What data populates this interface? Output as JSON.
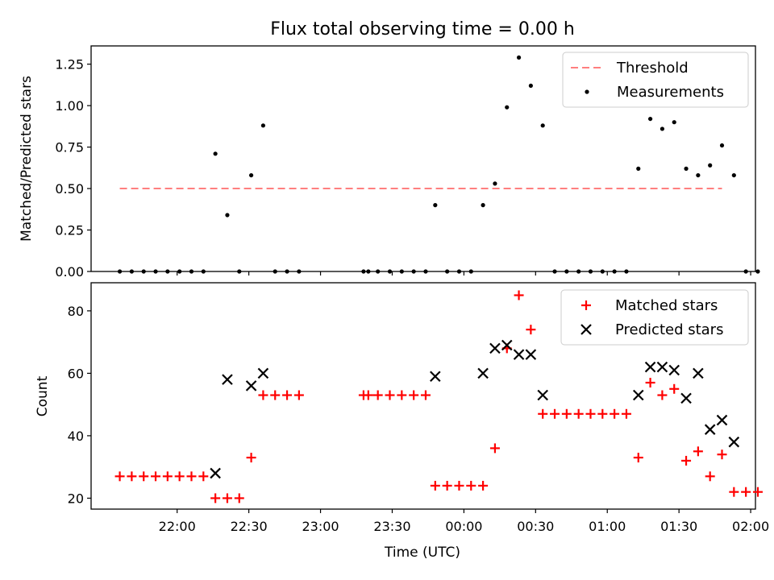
{
  "figure": {
    "title": "Flux total observing time = 0.00 h",
    "xlabel": "Time (UTC)",
    "x_tick_labels": [
      "22:00",
      "22:30",
      "23:00",
      "23:30",
      "00:00",
      "00:30",
      "01:00",
      "01:30",
      "02:00"
    ]
  },
  "chart_data": [
    {
      "type": "scatter",
      "panel": "top",
      "ylabel": "Matched/Predicted stars",
      "ylim": [
        0,
        1.36
      ],
      "y_ticks": [
        0.0,
        0.25,
        0.5,
        0.75,
        1.0,
        1.25
      ],
      "y_tick_labels": [
        "0.00",
        "0.25",
        "0.50",
        "0.75",
        "1.00",
        "1.25"
      ],
      "x_unit": "minutes after 21:00 UTC",
      "xlim": [
        24,
        302
      ],
      "legend": "upper right",
      "threshold": {
        "name": "Threshold",
        "value": 0.5,
        "x_range": [
          36,
          288
        ],
        "color": "#ff7f7f"
      },
      "series": [
        {
          "name": "Measurements",
          "color": "#000000",
          "points": [
            [
              36,
              0
            ],
            [
              41,
              0
            ],
            [
              46,
              0
            ],
            [
              51,
              0
            ],
            [
              56,
              0
            ],
            [
              61,
              0
            ],
            [
              66,
              0
            ],
            [
              71,
              0
            ],
            [
              76,
              0.71
            ],
            [
              81,
              0.34
            ],
            [
              86,
              0
            ],
            [
              91,
              0.58
            ],
            [
              96,
              0.88
            ],
            [
              101,
              0
            ],
            [
              106,
              0
            ],
            [
              111,
              0
            ],
            [
              138,
              0
            ],
            [
              140,
              0
            ],
            [
              144,
              0
            ],
            [
              149,
              0
            ],
            [
              154,
              0
            ],
            [
              159,
              0
            ],
            [
              164,
              0
            ],
            [
              168,
              0.4
            ],
            [
              173,
              0
            ],
            [
              178,
              0
            ],
            [
              183,
              0
            ],
            [
              188,
              0.4
            ],
            [
              193,
              0.53
            ],
            [
              198,
              0.99
            ],
            [
              203,
              1.29
            ],
            [
              208,
              1.12
            ],
            [
              213,
              0.88
            ],
            [
              218,
              0
            ],
            [
              223,
              0
            ],
            [
              228,
              0
            ],
            [
              233,
              0
            ],
            [
              238,
              0
            ],
            [
              243,
              0
            ],
            [
              248,
              0
            ],
            [
              253,
              0.62
            ],
            [
              258,
              0.92
            ],
            [
              263,
              0.86
            ],
            [
              268,
              0.9
            ],
            [
              273,
              0.62
            ],
            [
              278,
              0.58
            ],
            [
              283,
              0.64
            ],
            [
              288,
              0.76
            ],
            [
              293,
              0.58
            ],
            [
              298,
              0
            ],
            [
              303,
              0
            ]
          ]
        }
      ]
    },
    {
      "type": "scatter",
      "panel": "bottom",
      "ylabel": "Count",
      "ylim": [
        16.5,
        89
      ],
      "y_ticks": [
        20,
        40,
        60,
        80
      ],
      "y_tick_labels": [
        "20",
        "40",
        "60",
        "80"
      ],
      "x_unit": "minutes after 21:00 UTC",
      "xlim": [
        24,
        302
      ],
      "legend": "upper right",
      "series": [
        {
          "name": "Matched stars",
          "marker": "plus",
          "color": "#ff0000",
          "points": [
            [
              36,
              27
            ],
            [
              41,
              27
            ],
            [
              46,
              27
            ],
            [
              51,
              27
            ],
            [
              56,
              27
            ],
            [
              61,
              27
            ],
            [
              66,
              27
            ],
            [
              71,
              27
            ],
            [
              76,
              20
            ],
            [
              81,
              20
            ],
            [
              86,
              20
            ],
            [
              91,
              33
            ],
            [
              96,
              53
            ],
            [
              101,
              53
            ],
            [
              106,
              53
            ],
            [
              111,
              53
            ],
            [
              138,
              53
            ],
            [
              140,
              53
            ],
            [
              144,
              53
            ],
            [
              149,
              53
            ],
            [
              154,
              53
            ],
            [
              159,
              53
            ],
            [
              164,
              53
            ],
            [
              168,
              24
            ],
            [
              173,
              24
            ],
            [
              178,
              24
            ],
            [
              183,
              24
            ],
            [
              188,
              24
            ],
            [
              193,
              36
            ],
            [
              198,
              68
            ],
            [
              203,
              85
            ],
            [
              208,
              74
            ],
            [
              213,
              47
            ],
            [
              218,
              47
            ],
            [
              223,
              47
            ],
            [
              228,
              47
            ],
            [
              233,
              47
            ],
            [
              238,
              47
            ],
            [
              243,
              47
            ],
            [
              248,
              47
            ],
            [
              253,
              33
            ],
            [
              258,
              57
            ],
            [
              263,
              53
            ],
            [
              268,
              55
            ],
            [
              273,
              32
            ],
            [
              278,
              35
            ],
            [
              283,
              27
            ],
            [
              288,
              34
            ],
            [
              293,
              22
            ],
            [
              298,
              22
            ],
            [
              303,
              22
            ]
          ]
        },
        {
          "name": "Predicted stars",
          "marker": "x",
          "color": "#000000",
          "points": [
            [
              76,
              28
            ],
            [
              81,
              58
            ],
            [
              91,
              56
            ],
            [
              96,
              60
            ],
            [
              168,
              59
            ],
            [
              188,
              60
            ],
            [
              193,
              68
            ],
            [
              198,
              69
            ],
            [
              203,
              66
            ],
            [
              208,
              66
            ],
            [
              213,
              53
            ],
            [
              253,
              53
            ],
            [
              258,
              62
            ],
            [
              263,
              62
            ],
            [
              268,
              61
            ],
            [
              273,
              52
            ],
            [
              278,
              60
            ],
            [
              283,
              42
            ],
            [
              288,
              45
            ],
            [
              293,
              38
            ]
          ]
        }
      ]
    }
  ]
}
